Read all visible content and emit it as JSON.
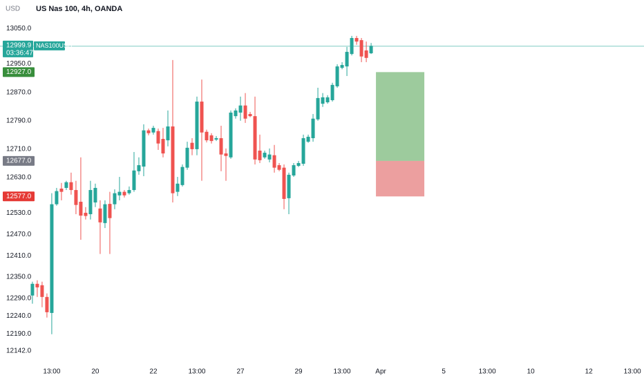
{
  "chart_data": {
    "type": "candlestick",
    "title": "US Nas 100, 4h, OANDA",
    "y_unit": "USD",
    "symbol": "NAS100USD",
    "countdown": "03:36:47",
    "up_color": "#26a69a",
    "down_color": "#ef5350",
    "grid": false,
    "open": [
      12298,
      12331,
      12327,
      12294,
      12249,
      12555,
      12599,
      12601,
      12617,
      12595,
      12562,
      12531,
      12527,
      12560,
      12543,
      12502,
      12556,
      12555,
      12580,
      12590,
      12586,
      12595,
      12648,
      12661,
      12763,
      12757,
      12761,
      12739,
      12735,
      12774,
      12590,
      12609,
      12658,
      12728,
      12710,
      12844,
      12759,
      12749,
      12737,
      12741,
      12698,
      12687,
      12803,
      12813,
      12833,
      12809,
      12803,
      12706,
      12687,
      12681,
      12693,
      12665,
      12658,
      12572,
      12636,
      12663,
      12669,
      12731,
      12741,
      12794,
      12838,
      12842,
      12848,
      12887,
      12939,
      12943,
      12978,
      13023,
      13017,
      12988,
      12980
    ],
    "high": [
      12337,
      12341,
      12337,
      12304,
      12586,
      12601,
      12615,
      12621,
      12644,
      12621,
      12687,
      12547,
      12621,
      12613,
      12566,
      12566,
      12590,
      12597,
      12632,
      12595,
      12605,
      12702,
      12687,
      12780,
      12768,
      12776,
      12768,
      12770,
      12819,
      12961,
      12632,
      12667,
      12731,
      12741,
      12858,
      12906,
      12765,
      12755,
      12747,
      12776,
      12712,
      12819,
      12825,
      12858,
      12868,
      12815,
      12858,
      12751,
      12706,
      12712,
      12722,
      12671,
      12667,
      12644,
      12671,
      12677,
      12751,
      12751,
      12809,
      12883,
      12868,
      12862,
      12897,
      12949,
      12955,
      12998,
      13029,
      13029,
      13023,
      13013,
      13009
    ],
    "low": [
      12275,
      12294,
      12265,
      12236,
      12189,
      12551,
      12566,
      12595,
      12582,
      12527,
      12455,
      12512,
      12512,
      12547,
      12415,
      12488,
      12415,
      12541,
      12566,
      12574,
      12582,
      12590,
      12638,
      12634,
      12749,
      12751,
      12708,
      12687,
      12718,
      12560,
      12578,
      12605,
      12652,
      12693,
      12693,
      12621,
      12729,
      12726,
      12733,
      12648,
      12621,
      12683,
      12796,
      12790,
      12784,
      12800,
      12667,
      12671,
      12683,
      12673,
      12644,
      12648,
      12541,
      12527,
      12632,
      12660,
      12663,
      12728,
      12731,
      12790,
      12829,
      12838,
      12844,
      12883,
      12935,
      12916,
      12974,
      13004,
      12955,
      12955,
      12978
    ],
    "close": [
      12331,
      12321,
      12294,
      12251,
      12555,
      12592,
      12590,
      12617,
      12595,
      12553,
      12523,
      12522,
      12595,
      12601,
      12504,
      12555,
      12516,
      12586,
      12590,
      12580,
      12595,
      12650,
      12665,
      12763,
      12755,
      12770,
      12726,
      12698,
      12774,
      12586,
      12613,
      12660,
      12714,
      12710,
      12844,
      12757,
      12735,
      12733,
      12741,
      12695,
      12691,
      12813,
      12819,
      12833,
      12796,
      12803,
      12681,
      12679,
      12700,
      12695,
      12658,
      12652,
      12570,
      12638,
      12665,
      12671,
      12741,
      12745,
      12796,
      12854,
      12856,
      12856,
      12891,
      12943,
      12947,
      12984,
      13023,
      13013,
      12971,
      12967,
      13001
    ],
    "xlim": [
      -6.7,
      126.4
    ],
    "xticks": [
      {
        "value": 4,
        "label": "13:00"
      },
      {
        "value": 13,
        "label": "20"
      },
      {
        "value": 25,
        "label": "22"
      },
      {
        "value": 34,
        "label": "13:00"
      },
      {
        "value": 43,
        "label": "27"
      },
      {
        "value": 55,
        "label": "29"
      },
      {
        "value": 64,
        "label": "13:00"
      },
      {
        "value": 72,
        "label": "Apr"
      },
      {
        "value": 85,
        "label": "5"
      },
      {
        "value": 94,
        "label": "13:00"
      },
      {
        "value": 103,
        "label": "10"
      },
      {
        "value": 115,
        "label": "12"
      },
      {
        "value": 124,
        "label": "13:00"
      }
    ],
    "ylim": [
      12103,
      13130
    ],
    "yticks": [
      {
        "value": 13050,
        "label": "13050.0"
      },
      {
        "value": 12950,
        "label": "12950.0"
      },
      {
        "value": 12870,
        "label": "12870.0"
      },
      {
        "value": 12790,
        "label": "12790.0"
      },
      {
        "value": 12710,
        "label": "12710.0"
      },
      {
        "value": 12630,
        "label": "12630.0"
      },
      {
        "value": 12530,
        "label": "12530.0"
      },
      {
        "value": 12470,
        "label": "12470.0"
      },
      {
        "value": 12410,
        "label": "12410.0"
      },
      {
        "value": 12350,
        "label": "12350.0"
      },
      {
        "value": 12290,
        "label": "12290.0"
      },
      {
        "value": 12240,
        "label": "12240.0"
      },
      {
        "value": 12190,
        "label": "12190.0"
      },
      {
        "value": 12142,
        "label": "12142.0"
      }
    ],
    "last_price": {
      "value": 12999.9,
      "label": "12999.9"
    },
    "position": {
      "start": 71,
      "end": 81,
      "target": {
        "value": 12927,
        "label": "12927.0"
      },
      "entry": {
        "value": 12677,
        "label": "12677.0"
      },
      "stop": {
        "value": 12577,
        "label": "12577.0"
      }
    }
  }
}
